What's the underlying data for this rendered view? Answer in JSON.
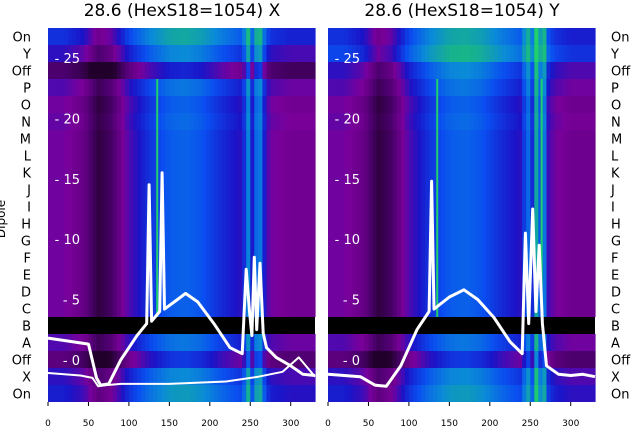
{
  "panels": [
    {
      "title": "28.6 (HexS18=1054) X",
      "pol": "X"
    },
    {
      "title": "28.6 (HexS18=1054) Y",
      "pol": "Y"
    }
  ],
  "ylabel": "Dipole",
  "row_labels": [
    "On",
    "Y",
    "Off",
    "P",
    "O",
    "N",
    "M",
    "L",
    "K",
    "J",
    "I",
    "H",
    "G",
    "F",
    "E",
    "D",
    "C",
    "B",
    "A",
    "Off",
    "X",
    "On"
  ],
  "colors": {
    "colormap": [
      "#21002b",
      "#4a006c",
      "#7a009a",
      "#1a14c8",
      "#0a4ef0",
      "#0a8ad8",
      "#17b38c",
      "#20d06a"
    ],
    "overlay": "#ffffff",
    "gap_band": "#000000"
  },
  "chart_data": {
    "type": "heatmap",
    "x_axis": {
      "ticks": [
        0,
        50,
        100,
        150,
        200,
        250,
        300
      ],
      "lim": [
        0,
        330
      ]
    },
    "overlay_axis": {
      "ticks": [
        0,
        5,
        10,
        15,
        20,
        25
      ],
      "lim": [
        -3.5,
        27.5
      ]
    },
    "rows": [
      "On",
      "Y",
      "Off",
      "P",
      "O",
      "N",
      "M",
      "L",
      "K",
      "J",
      "I",
      "H",
      "G",
      "F",
      "E",
      "D",
      "C",
      "B",
      "A",
      "Off",
      "X",
      "On"
    ],
    "X": {
      "time_profile": [
        [
          0,
          0.3
        ],
        [
          20,
          0.3
        ],
        [
          45,
          0.22
        ],
        [
          62,
          0.05
        ],
        [
          78,
          0.12
        ],
        [
          100,
          0.35
        ],
        [
          125,
          0.5
        ],
        [
          150,
          0.6
        ],
        [
          170,
          0.62
        ],
        [
          190,
          0.58
        ],
        [
          215,
          0.48
        ],
        [
          240,
          0.4
        ],
        [
          244,
          0.55
        ],
        [
          248,
          0.72
        ],
        [
          252,
          0.4
        ],
        [
          256,
          0.75
        ],
        [
          260,
          0.45
        ],
        [
          264,
          0.8
        ],
        [
          268,
          0.4
        ],
        [
          275,
          0.3
        ],
        [
          300,
          0.26
        ],
        [
          330,
          0.26
        ]
      ],
      "row_offsets": [
        0.2,
        0.1,
        -0.15,
        0.05,
        0.0,
        0.02,
        0.0,
        0.0,
        0.0,
        0.0,
        0.0,
        0.0,
        0.0,
        0.0,
        0.0,
        0.0,
        0.0,
        null,
        0.05,
        -0.1,
        0.1,
        0.15
      ],
      "green_lines_x": [
        135
      ],
      "overlay": [
        [
          0,
          1.8
        ],
        [
          20,
          1.6
        ],
        [
          50,
          1.3
        ],
        [
          60,
          -1.5
        ],
        [
          65,
          -2.1
        ],
        [
          75,
          -2.0
        ],
        [
          90,
          0.0
        ],
        [
          110,
          2.0
        ],
        [
          122,
          3.0
        ],
        [
          125,
          14.5
        ],
        [
          128,
          3.2
        ],
        [
          138,
          4.0
        ],
        [
          141,
          15.5
        ],
        [
          144,
          4.2
        ],
        [
          160,
          5.0
        ],
        [
          170,
          5.5
        ],
        [
          185,
          4.8
        ],
        [
          205,
          3.0
        ],
        [
          225,
          1.0
        ],
        [
          240,
          0.5
        ],
        [
          245,
          7.5
        ],
        [
          249,
          4.0
        ],
        [
          252,
          2.0
        ],
        [
          255,
          8.5
        ],
        [
          258,
          2.5
        ],
        [
          262,
          8.0
        ],
        [
          266,
          2.2
        ],
        [
          270,
          1.0
        ],
        [
          282,
          0.2
        ],
        [
          300,
          -0.5
        ],
        [
          315,
          -1.2
        ],
        [
          330,
          -1.3
        ]
      ],
      "overlay_low": [
        [
          0,
          -1.1
        ],
        [
          40,
          -1.3
        ],
        [
          55,
          -1.5
        ],
        [
          62,
          -2.2
        ],
        [
          72,
          -2.1
        ],
        [
          90,
          -2.0
        ],
        [
          150,
          -2.0
        ],
        [
          220,
          -1.8
        ],
        [
          260,
          -1.4
        ],
        [
          290,
          -1.0
        ],
        [
          310,
          0.2
        ],
        [
          330,
          -1.4
        ]
      ]
    },
    "Y": {
      "time_profile": [
        [
          0,
          0.3
        ],
        [
          20,
          0.3
        ],
        [
          45,
          0.22
        ],
        [
          62,
          0.05
        ],
        [
          78,
          0.12
        ],
        [
          100,
          0.35
        ],
        [
          125,
          0.5
        ],
        [
          150,
          0.6
        ],
        [
          170,
          0.62
        ],
        [
          190,
          0.58
        ],
        [
          215,
          0.48
        ],
        [
          240,
          0.4
        ],
        [
          246,
          0.7
        ],
        [
          252,
          0.45
        ],
        [
          258,
          0.85
        ],
        [
          262,
          0.55
        ],
        [
          266,
          0.82
        ],
        [
          270,
          0.4
        ],
        [
          280,
          0.3
        ],
        [
          300,
          0.25
        ],
        [
          330,
          0.25
        ]
      ],
      "row_offsets": [
        0.2,
        0.25,
        0.1,
        0.05,
        0.0,
        0.02,
        0.0,
        0.0,
        0.0,
        0.0,
        0.0,
        0.0,
        0.0,
        0.0,
        0.0,
        0.0,
        0.0,
        null,
        0.05,
        -0.1,
        0.1,
        0.15
      ],
      "green_lines_x": [
        135,
        264
      ],
      "overlay": [
        [
          0,
          -1.2
        ],
        [
          40,
          -1.4
        ],
        [
          58,
          -2.1
        ],
        [
          72,
          -2.2
        ],
        [
          90,
          -0.5
        ],
        [
          110,
          2.5
        ],
        [
          125,
          4.0
        ],
        [
          128,
          14.8
        ],
        [
          131,
          4.2
        ],
        [
          150,
          5.2
        ],
        [
          168,
          5.8
        ],
        [
          185,
          5.0
        ],
        [
          205,
          3.5
        ],
        [
          225,
          1.5
        ],
        [
          240,
          0.5
        ],
        [
          244,
          10.5
        ],
        [
          248,
          3.0
        ],
        [
          253,
          12.5
        ],
        [
          257,
          4.0
        ],
        [
          261,
          9.5
        ],
        [
          265,
          3.0
        ],
        [
          270,
          -0.5
        ],
        [
          285,
          -1.2
        ],
        [
          300,
          -1.3
        ],
        [
          315,
          -1.2
        ],
        [
          330,
          -1.4
        ]
      ]
    }
  }
}
